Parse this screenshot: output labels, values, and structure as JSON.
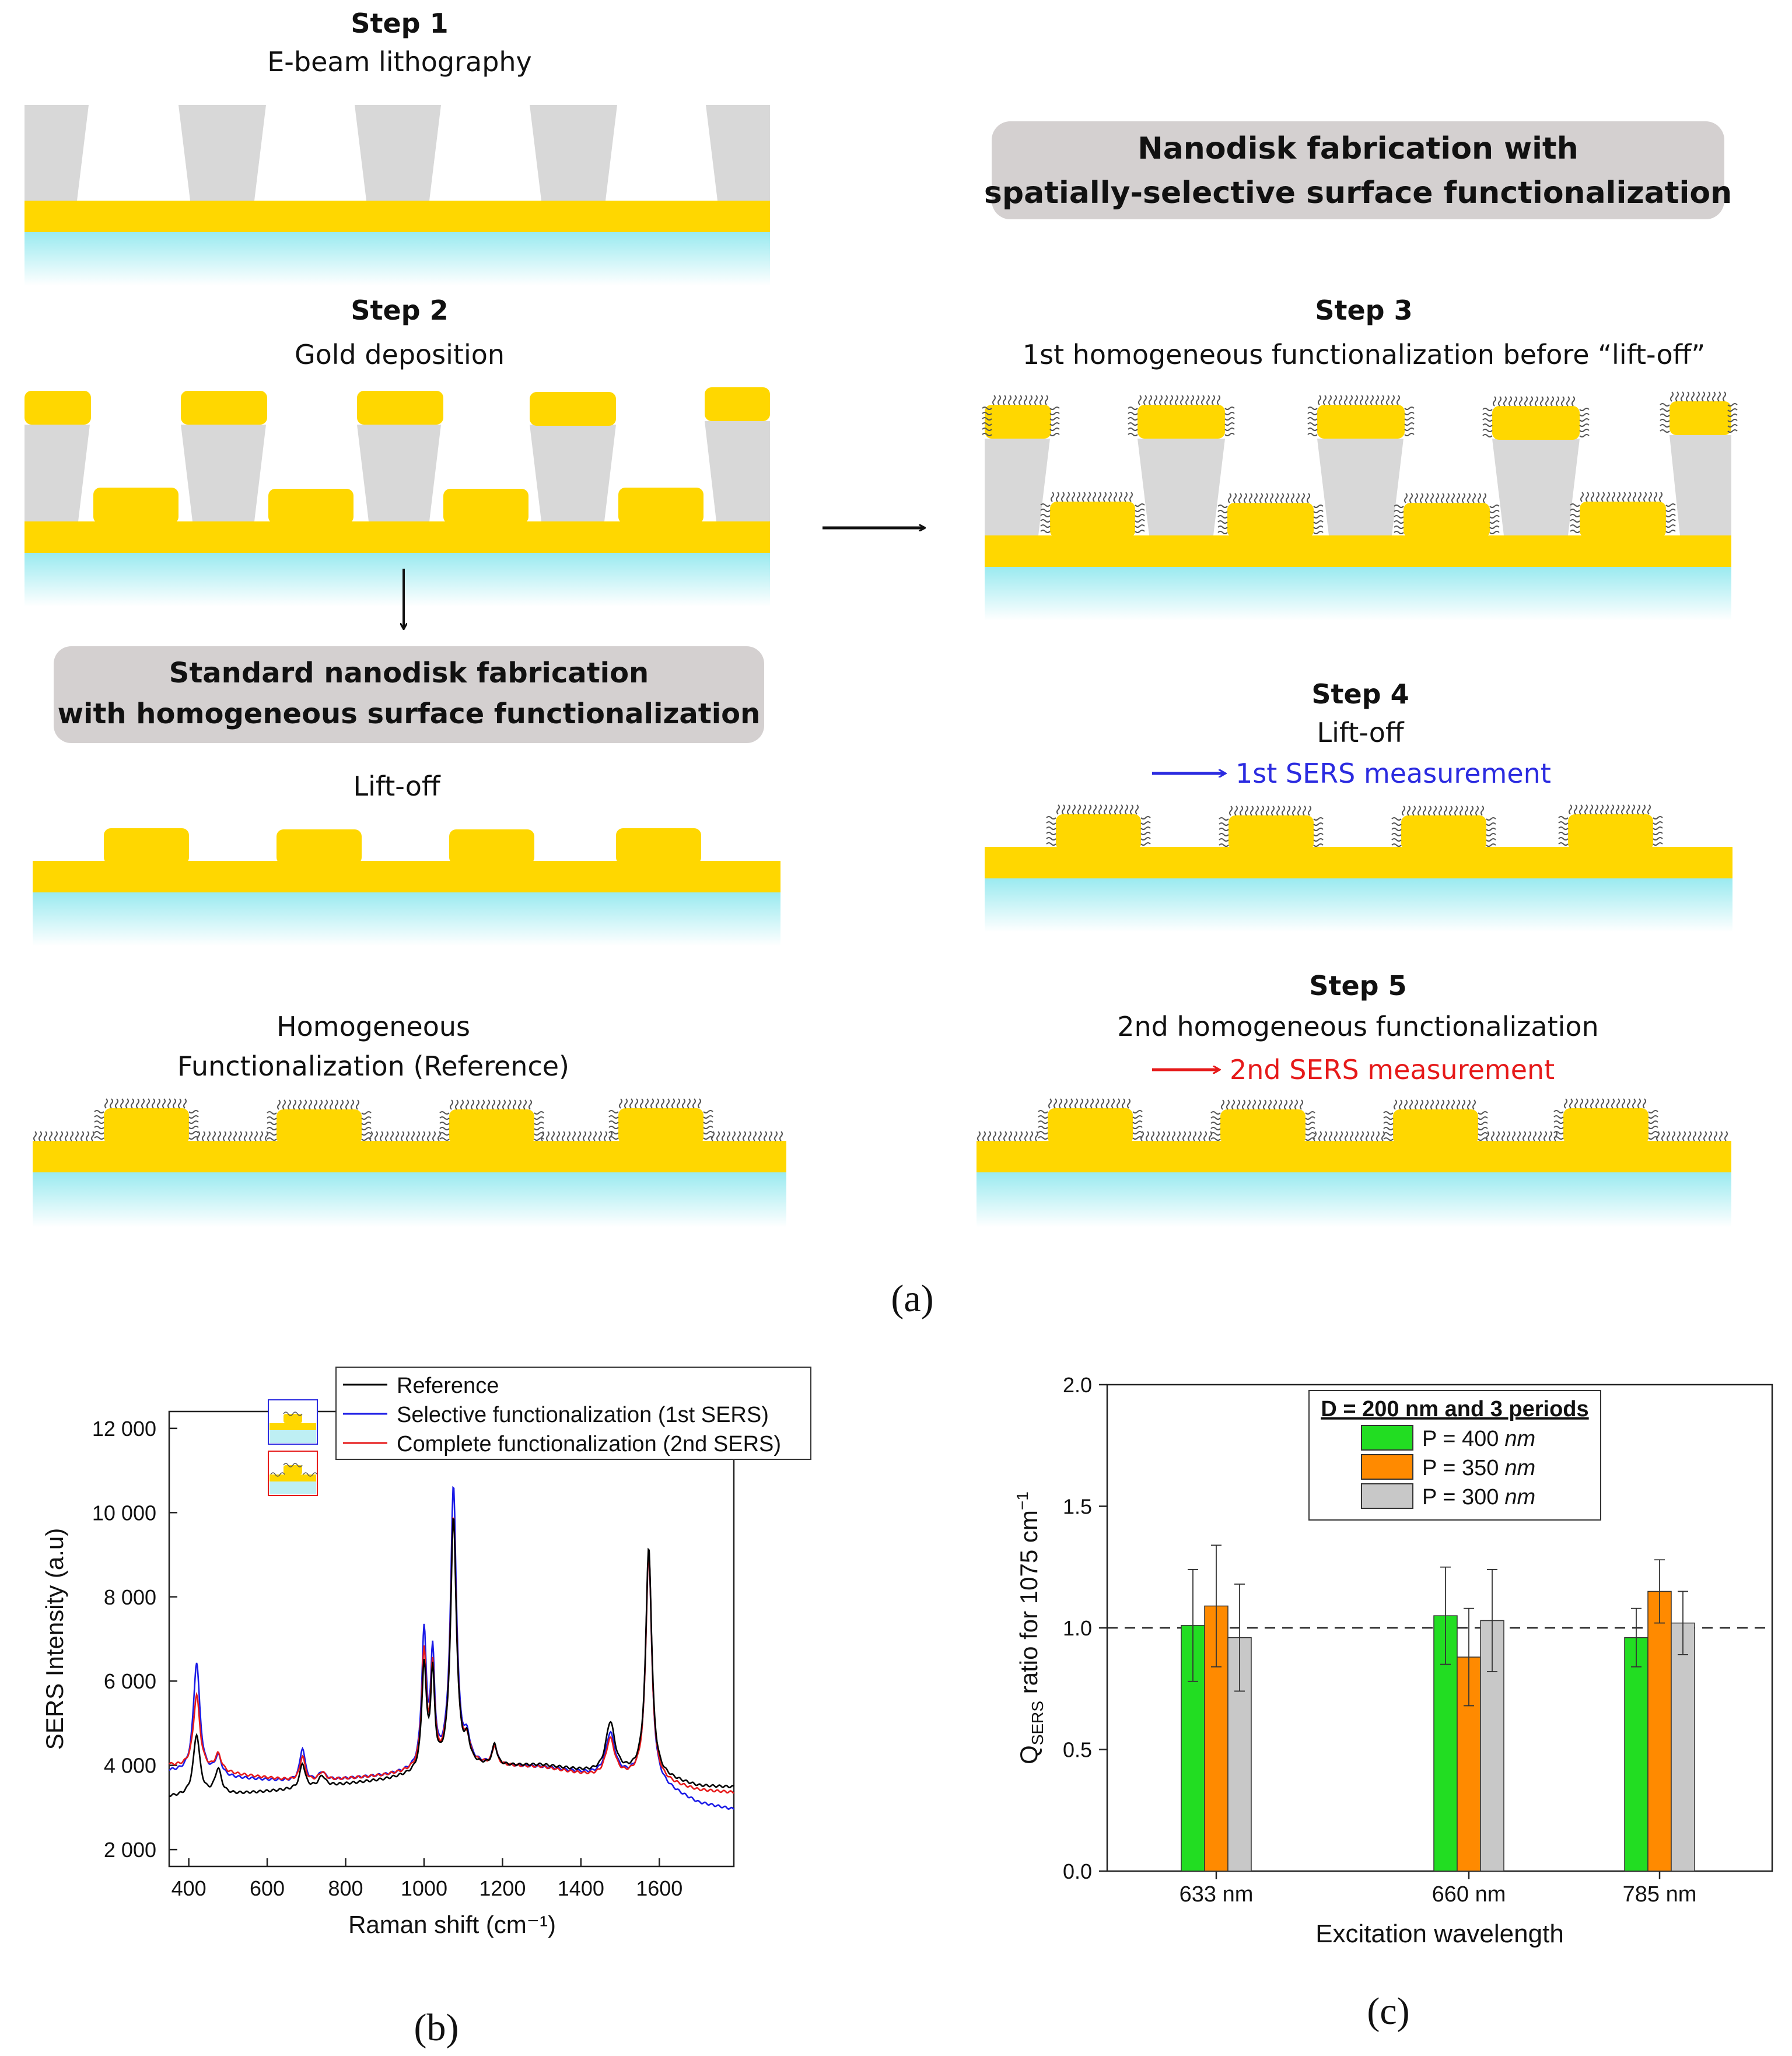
{
  "colors": {
    "gold": "#FFD700",
    "resist": "#D8D8D8",
    "glass_top": "#9AEAF0",
    "box_fill": "#D4D0D0",
    "selective": "#1A1AE6",
    "complete": "#E61A1A",
    "reference": "#000000",
    "bar_400": "#22DD22",
    "bar_350": "#FF8A00",
    "bar_300": "#C8C8C8"
  },
  "panel_a": {
    "step1": {
      "label": "Step 1",
      "desc": "E-beam lithography"
    },
    "step2": {
      "label": "Step 2",
      "desc": "Gold deposition"
    },
    "standard_box": {
      "line1": "Standard nanodisk fabrication",
      "line2": "with homogeneous surface functionalization"
    },
    "liftoff_left": "Lift-off",
    "homog": {
      "line1": "Homogeneous",
      "line2": "Functionalization (Reference)"
    },
    "selective_box": {
      "line1": "Nanodisk fabrication with",
      "line2": "spatially-selective surface functionalization"
    },
    "step3": {
      "label": "Step 3",
      "desc": "1st homogeneous functionalization before “lift-off”"
    },
    "step4": {
      "label": "Step 4",
      "desc": "Lift-off",
      "measurement": "1st SERS measurement"
    },
    "step5": {
      "label": "Step 5",
      "desc": "2nd homogeneous functionalization",
      "measurement": "2nd SERS measurement"
    },
    "caption": "(a)"
  },
  "panel_b": {
    "caption": "(b)",
    "chart_data": {
      "type": "line",
      "xlabel": "Raman shift (cm⁻¹)",
      "ylabel": "SERS Intensity (a.u)",
      "xlim": [
        350,
        1790
      ],
      "ylim": [
        1600,
        12400
      ],
      "xticks": [
        "400",
        "600",
        "800",
        "1000",
        "1200",
        "1400",
        "1600"
      ],
      "yticks": [
        "2 000",
        "4 000",
        "6 000",
        "8 000",
        "10 000",
        "12 000"
      ],
      "legend": [
        "Reference",
        "Selective functionalization (1st SERS)",
        "Complete functionalization (2nd SERS)"
      ],
      "series": [
        {
          "name": "Reference",
          "baseline": [
            [
              350,
              3250
            ],
            [
              500,
              3300
            ],
            [
              700,
              3450
            ],
            [
              900,
              3650
            ],
            [
              1100,
              3950
            ],
            [
              1300,
              4000
            ],
            [
              1450,
              3800
            ],
            [
              1560,
              3800
            ],
            [
              1700,
              3500
            ],
            [
              1790,
              3480
            ]
          ],
          "peaks": [
            [
              420,
              1450,
              10
            ],
            [
              475,
              600,
              10
            ],
            [
              690,
              600,
              8
            ],
            [
              740,
              250,
              10
            ],
            [
              1000,
              2500,
              7
            ],
            [
              1022,
              2200,
              6
            ],
            [
              1075,
              5900,
              9
            ],
            [
              1110,
              500,
              8
            ],
            [
              1180,
              500,
              7
            ],
            [
              1475,
              1200,
              14
            ],
            [
              1573,
              5400,
              9
            ]
          ]
        },
        {
          "name": "Selective functionalization (1st SERS)",
          "baseline": [
            [
              350,
              3850
            ],
            [
              500,
              3700
            ],
            [
              700,
              3600
            ],
            [
              900,
              3750
            ],
            [
              1100,
              4000
            ],
            [
              1300,
              3950
            ],
            [
              1450,
              3750
            ],
            [
              1560,
              3700
            ],
            [
              1700,
              3100
            ],
            [
              1790,
              2950
            ]
          ],
          "peaks": [
            [
              420,
              2650,
              10
            ],
            [
              475,
              450,
              10
            ],
            [
              690,
              800,
              8
            ],
            [
              740,
              200,
              10
            ],
            [
              1000,
              3200,
              7
            ],
            [
              1022,
              2550,
              6
            ],
            [
              1075,
              6600,
              9
            ],
            [
              1110,
              500,
              8
            ],
            [
              1180,
              480,
              7
            ],
            [
              1475,
              1000,
              14
            ],
            [
              1573,
              5450,
              9
            ]
          ]
        },
        {
          "name": "Complete functionalization (2nd SERS)",
          "baseline": [
            [
              350,
              4000
            ],
            [
              500,
              3800
            ],
            [
              700,
              3600
            ],
            [
              900,
              3750
            ],
            [
              1100,
              4000
            ],
            [
              1300,
              3950
            ],
            [
              1450,
              3700
            ],
            [
              1560,
              3700
            ],
            [
              1700,
              3400
            ],
            [
              1790,
              3350
            ]
          ],
          "peaks": [
            [
              420,
              1750,
              10
            ],
            [
              475,
              400,
              10
            ],
            [
              690,
              600,
              8
            ],
            [
              740,
              200,
              10
            ],
            [
              1000,
              2700,
              7
            ],
            [
              1022,
              2250,
              6
            ],
            [
              1075,
              5900,
              9
            ],
            [
              1110,
              450,
              8
            ],
            [
              1180,
              450,
              7
            ],
            [
              1475,
              900,
              14
            ],
            [
              1573,
              5400,
              9
            ]
          ]
        }
      ]
    }
  },
  "panel_c": {
    "caption": "(c)",
    "chart_data": {
      "type": "bar",
      "categories": [
        "633 nm",
        "660 nm",
        "785 nm"
      ],
      "xlabel": "Excitation wavelength",
      "ylabel_main": "Q",
      "ylabel_sub": "SERS",
      "ylabel_rest": " ratio for 1075 cm",
      "ylabel_sup": "−1",
      "ylim": [
        0.0,
        2.0
      ],
      "yticks": [
        "0.0",
        "0.5",
        "1.0",
        "1.5",
        "2.0"
      ],
      "legend_title": "D = 200 nm and 3 periods",
      "reference_line": 1.0,
      "series": [
        {
          "name": "P = 400",
          "unit": "nm",
          "values": [
            1.01,
            1.05,
            0.96
          ],
          "errors": [
            0.23,
            0.2,
            0.12
          ]
        },
        {
          "name": "P = 350",
          "unit": "nm",
          "values": [
            1.09,
            0.88,
            1.15
          ],
          "errors": [
            0.25,
            0.2,
            0.13
          ]
        },
        {
          "name": "P = 300",
          "unit": "nm",
          "values": [
            0.96,
            1.03,
            1.02
          ],
          "errors": [
            0.22,
            0.21,
            0.13
          ]
        }
      ]
    }
  }
}
